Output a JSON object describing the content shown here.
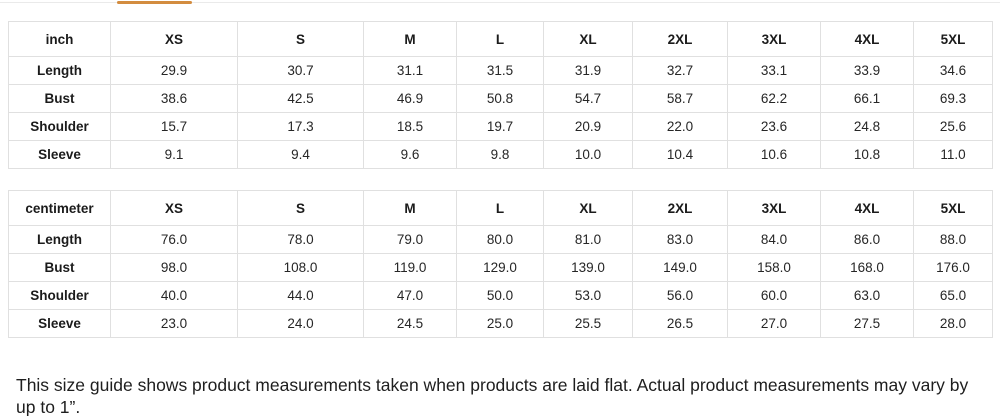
{
  "tabbar": {
    "active_indicator_color": "#d38c3f"
  },
  "tables": [
    {
      "unit_label": "inch",
      "size_headers": [
        "XS",
        "S",
        "M",
        "L",
        "XL",
        "2XL",
        "3XL",
        "4XL",
        "5XL"
      ],
      "rows": [
        {
          "label": "Length",
          "values": [
            "29.9",
            "30.7",
            "31.1",
            "31.5",
            "31.9",
            "32.7",
            "33.1",
            "33.9",
            "34.6"
          ]
        },
        {
          "label": "Bust",
          "values": [
            "38.6",
            "42.5",
            "46.9",
            "50.8",
            "54.7",
            "58.7",
            "62.2",
            "66.1",
            "69.3"
          ]
        },
        {
          "label": "Shoulder",
          "values": [
            "15.7",
            "17.3",
            "18.5",
            "19.7",
            "20.9",
            "22.0",
            "23.6",
            "24.8",
            "25.6"
          ]
        },
        {
          "label": "Sleeve",
          "values": [
            "9.1",
            "9.4",
            "9.6",
            "9.8",
            "10.0",
            "10.4",
            "10.6",
            "10.8",
            "11.0"
          ]
        }
      ]
    },
    {
      "unit_label": "centimeter",
      "size_headers": [
        "XS",
        "S",
        "M",
        "L",
        "XL",
        "2XL",
        "3XL",
        "4XL",
        "5XL"
      ],
      "rows": [
        {
          "label": "Length",
          "values": [
            "76.0",
            "78.0",
            "79.0",
            "80.0",
            "81.0",
            "83.0",
            "84.0",
            "86.0",
            "88.0"
          ]
        },
        {
          "label": "Bust",
          "values": [
            "98.0",
            "108.0",
            "119.0",
            "129.0",
            "139.0",
            "149.0",
            "158.0",
            "168.0",
            "176.0"
          ]
        },
        {
          "label": "Shoulder",
          "values": [
            "40.0",
            "44.0",
            "47.0",
            "50.0",
            "53.0",
            "56.0",
            "60.0",
            "63.0",
            "65.0"
          ]
        },
        {
          "label": "Sleeve",
          "values": [
            "23.0",
            "24.0",
            "24.5",
            "25.0",
            "25.5",
            "26.5",
            "27.0",
            "27.5",
            "28.0"
          ]
        }
      ]
    }
  ],
  "footnote": "This size guide shows product measurements taken when products are laid flat. Actual product measurements may vary by up to 1”."
}
